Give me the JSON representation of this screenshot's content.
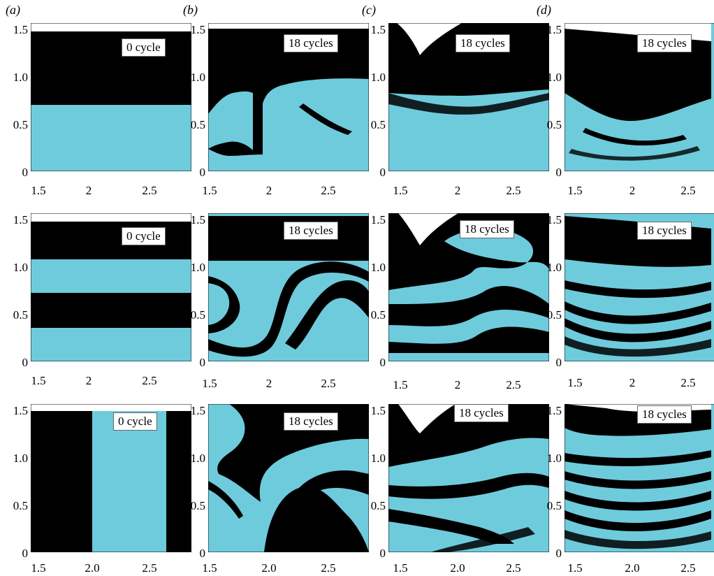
{
  "colors": {
    "fluid_a": "#6ecbdc",
    "fluid_b": "#000000",
    "background": "#ffffff"
  },
  "columns": [
    "(a)",
    "(b)",
    "(c)",
    "(d)"
  ],
  "y_ticks": [
    "0",
    "0.5",
    "1.0",
    "1.5"
  ],
  "x_ticks_short": [
    "1.5",
    "2",
    "2.5"
  ],
  "x_ticks_long": [
    "1.5",
    "2.0",
    "2.5"
  ],
  "rows": [
    {
      "labels": [
        "0 cycle",
        "18 cycles",
        "18 cycles",
        "18 cycles"
      ]
    },
    {
      "labels": [
        "0 cycle",
        "18 cycles",
        "18 cycles",
        "18 cycles"
      ]
    },
    {
      "labels": [
        "0 cycle",
        "18 cycles",
        "18 cycles",
        "18 cycles"
      ]
    }
  ]
}
